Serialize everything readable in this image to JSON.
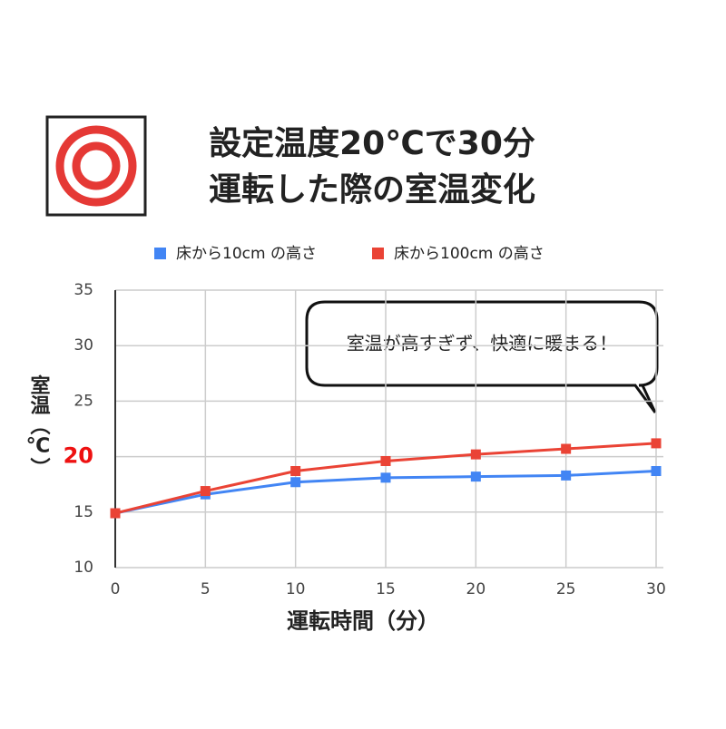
{
  "chart_data": {
    "type": "line",
    "title_lines": [
      "設定温度20℃で30分",
      "運転した際の室温変化"
    ],
    "annotation": "室温が高すぎず、快適に暖まる！",
    "x_label": "運転時間（分）",
    "y_label": "室温（℃）",
    "x": [
      0,
      5,
      10,
      15,
      20,
      25,
      30
    ],
    "series": [
      {
        "name": "床から10cm の高さ",
        "color": "#4285f4",
        "values": [
          14.9,
          16.6,
          17.7,
          18.1,
          18.2,
          18.3,
          18.7
        ]
      },
      {
        "name": "床から100cm の高さ",
        "color": "#ea4335",
        "values": [
          14.9,
          16.9,
          18.7,
          19.6,
          20.2,
          20.7,
          21.2
        ]
      }
    ],
    "xlim": [
      0,
      30
    ],
    "xticks": [
      0,
      5,
      10,
      15,
      20,
      25,
      30
    ],
    "ylim": [
      10,
      35
    ],
    "yticks": [
      10,
      15,
      20,
      25,
      30,
      35
    ],
    "highlight_yticks": [
      20
    ],
    "highlight_color": "#ee1111",
    "grid": true,
    "legend": "top"
  }
}
